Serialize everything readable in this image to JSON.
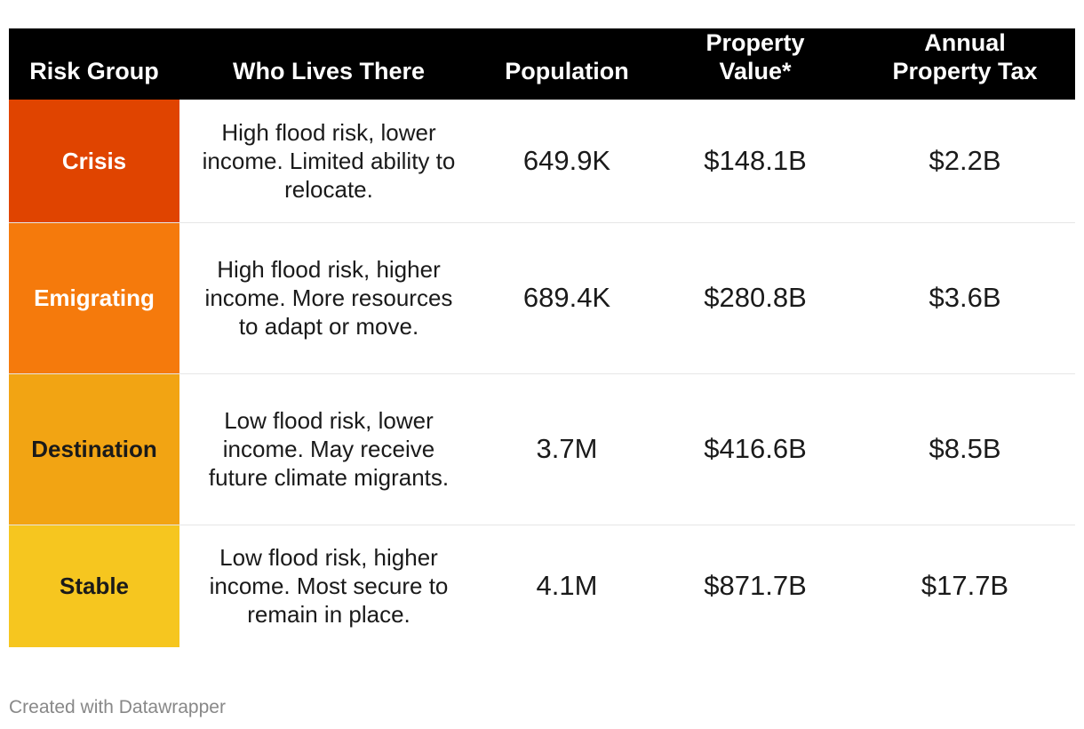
{
  "chart_data": {
    "type": "table",
    "columns": [
      "Risk Group",
      "Who Lives There",
      "Population",
      "Property Value*",
      "Annual Property Tax"
    ],
    "rows": [
      {
        "group": "Crisis",
        "description": "High flood risk, lower income. Limited ability to relocate.",
        "population": "649.9K",
        "property_value": "$148.1B",
        "annual_property_tax": "$2.2B",
        "color": "#e04400",
        "text_color": "#ffffff"
      },
      {
        "group": "Emigrating",
        "description": "High flood risk, higher income. More resources to adapt or move.",
        "population": "689.4K",
        "property_value": "$280.8B",
        "annual_property_tax": "$3.6B",
        "color": "#f57a0c",
        "text_color": "#ffffff"
      },
      {
        "group": "Destination",
        "description": "Low flood risk, lower income. May receive future climate migrants.",
        "population": "3.7M",
        "property_value": "$416.6B",
        "annual_property_tax": "$8.5B",
        "color": "#f2a413",
        "text_color": "#1a1a1a"
      },
      {
        "group": "Stable",
        "description": "Low flood risk, higher income. Most secure to remain in place.",
        "population": "4.1M",
        "property_value": "$871.7B",
        "annual_property_tax": "$17.7B",
        "color": "#f6c61f",
        "text_color": "#1a1a1a"
      }
    ],
    "footer": "Created with Datawrapper"
  }
}
